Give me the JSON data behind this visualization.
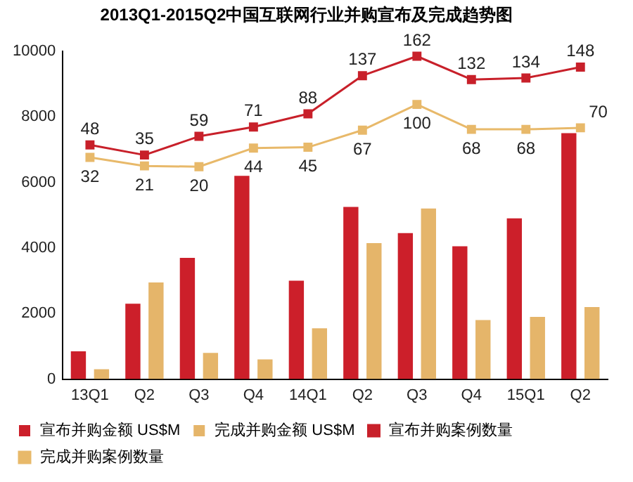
{
  "chart_data": {
    "type": "bar",
    "title": "2013Q1-2015Q2中国互联网行业并购宣布及完成趋势图",
    "categories": [
      "13Q1",
      "Q2",
      "Q3",
      "Q4",
      "14Q1",
      "Q2",
      "Q3",
      "Q4",
      "15Q1",
      "Q2"
    ],
    "series": [
      {
        "name": "宣布并购金额 US$M",
        "color": "#cc1f2a",
        "values": [
          850,
          2300,
          3700,
          6200,
          3000,
          5250,
          4450,
          4050,
          4900,
          7500
        ]
      },
      {
        "name": "完成并购金额 US$M",
        "color": "#e5b56a",
        "values": [
          300,
          2950,
          800,
          600,
          1550,
          4150,
          5200,
          1800,
          1900,
          2200
        ]
      },
      {
        "name": "宣布并购案例数量",
        "type": "line",
        "axis": "y2",
        "color": "#c8202a",
        "values": [
          48,
          35,
          59,
          71,
          88,
          137,
          162,
          132,
          134,
          148
        ],
        "value_labels": [
          "48",
          "35",
          "59",
          "71",
          "88",
          "137",
          "162",
          "132",
          "134",
          "148"
        ]
      },
      {
        "name": "完成并购案例数量",
        "type": "line",
        "axis": "y2",
        "color": "#e8b96a",
        "values": [
          32,
          21,
          20,
          44,
          45,
          67,
          100,
          68,
          68,
          70
        ],
        "value_labels": [
          "32",
          "21",
          "20",
          "44",
          "45",
          "67",
          "100",
          "68",
          "68",
          "70"
        ]
      }
    ],
    "ylim": [
      0,
      10000
    ],
    "yticks": [
      0,
      2000,
      4000,
      6000,
      8000,
      10000
    ],
    "y2lim": [
      -253,
      168.5
    ],
    "tick_labels": "xy",
    "grid": false,
    "legend": "bottom",
    "marker": "square"
  }
}
